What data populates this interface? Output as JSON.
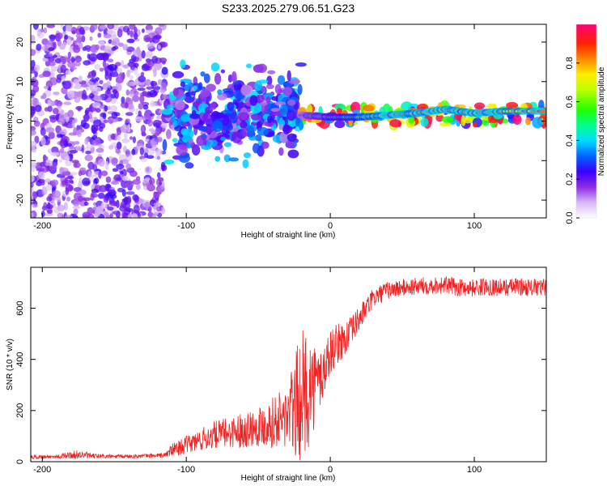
{
  "title": "S233.2025.279.06.51.G23",
  "chart_data": [
    {
      "type": "heatmap",
      "name": "spectrogram",
      "xlabel": "Height of straight line (km)",
      "ylabel": "Frequency (Hz)",
      "xlim": [
        -208,
        150
      ],
      "ylim": [
        -24.5,
        24.5
      ],
      "xticks": [
        -200,
        -100,
        0,
        100
      ],
      "yticks": [
        -20,
        -10,
        0,
        10,
        20
      ],
      "colorbar": {
        "label": "Normalized spectral amplitude",
        "range": [
          0,
          1
        ],
        "ticks": [
          "0.0",
          "0.2",
          "0.4",
          "0.6",
          "0.8"
        ],
        "tick_values": [
          0.0,
          0.2,
          0.4,
          0.6,
          0.8
        ]
      },
      "regions": [
        {
          "x_range": [
            -208,
            -115
          ],
          "freq_range": [
            -24.5,
            24.5
          ],
          "description": "scattered low-amplitude noise",
          "amplitude_range": [
            0.05,
            0.25
          ]
        },
        {
          "x_range": [
            -115,
            -20
          ],
          "freq_range": [
            -15,
            15
          ],
          "description": "clustered blobs around 0 Hz",
          "amplitude_range": [
            0.1,
            0.45
          ]
        },
        {
          "x_range": [
            -20,
            150
          ],
          "freq_range": [
            -1,
            4
          ],
          "description": "continuous carrier line near 1-3 Hz",
          "amplitude_range": [
            0.2,
            1.0
          ]
        }
      ],
      "carrier_line": {
        "x": [
          -20,
          0,
          20,
          40,
          60,
          80,
          100,
          120,
          150
        ],
        "freq": [
          1.5,
          1.0,
          1.0,
          1.5,
          2.0,
          3.0,
          2.0,
          2.5,
          2.5
        ],
        "peak_amplitude": 0.95
      }
    },
    {
      "type": "line",
      "name": "snr",
      "xlabel": "Height of straight line (km)",
      "ylabel": "SNR (10 * v/v)",
      "xlim": [
        -208,
        150
      ],
      "ylim": [
        0,
        760
      ],
      "xticks": [
        -200,
        -100,
        0,
        100
      ],
      "yticks": [
        0,
        200,
        400,
        600
      ],
      "color": "#ee2222",
      "series": [
        {
          "name": "SNR",
          "x": [
            -208,
            -190,
            -175,
            -165,
            -150,
            -130,
            -115,
            -110,
            -100,
            -90,
            -80,
            -70,
            -60,
            -50,
            -40,
            -30,
            -25,
            -20,
            -15,
            -10,
            -5,
            0,
            5,
            10,
            15,
            20,
            25,
            30,
            40,
            50,
            60,
            70,
            80,
            90,
            100,
            110,
            120,
            130,
            140,
            150
          ],
          "y": [
            18,
            20,
            28,
            22,
            20,
            22,
            25,
            45,
            65,
            85,
            105,
            115,
            125,
            140,
            155,
            175,
            210,
            255,
            285,
            305,
            345,
            430,
            460,
            480,
            510,
            560,
            600,
            640,
            670,
            680,
            685,
            690,
            690,
            680,
            680,
            685,
            680,
            685,
            680,
            680
          ],
          "noise_amplitude": [
            8,
            8,
            18,
            10,
            8,
            8,
            10,
            25,
            35,
            45,
            55,
            60,
            70,
            80,
            100,
            130,
            200,
            260,
            230,
            150,
            120,
            90,
            80,
            70,
            60,
            50,
            45,
            40,
            35,
            35,
            35,
            35,
            35,
            35,
            35,
            35,
            35,
            35,
            35,
            35
          ]
        }
      ]
    }
  ]
}
